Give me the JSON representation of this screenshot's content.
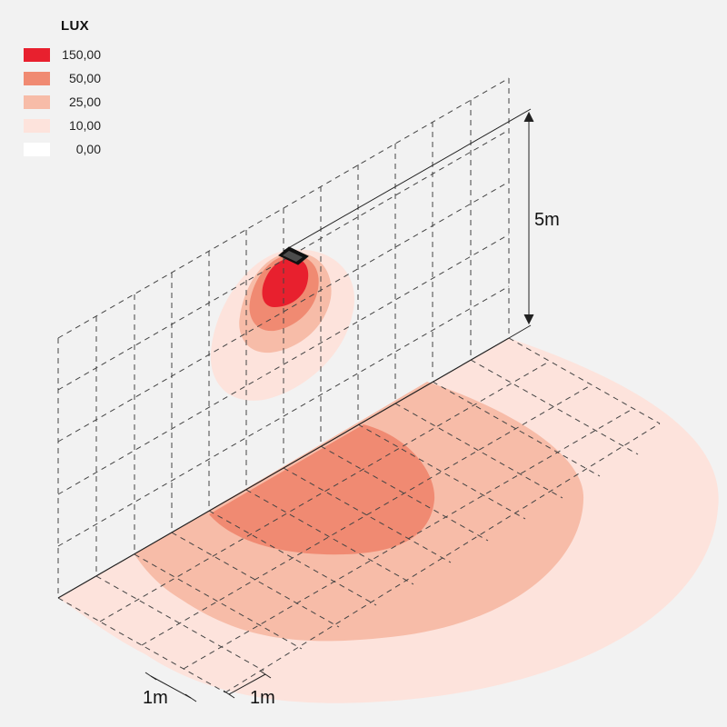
{
  "legend": {
    "title": "LUX",
    "items": [
      {
        "value": "150,00",
        "color": "#e8202e"
      },
      {
        "value": "50,00",
        "color": "#f08a72"
      },
      {
        "value": "25,00",
        "color": "#f7bca8"
      },
      {
        "value": "10,00",
        "color": "#fde3dc"
      },
      {
        "value": "0,00",
        "color": "#ffffff"
      }
    ]
  },
  "dimensions": {
    "height": "5m",
    "floor_depth": "1m",
    "floor_width": "1m"
  },
  "fixture": {
    "icon": "wall-luminaire-icon"
  },
  "colors": {
    "background": "#f2f2f2",
    "grid": "#444444"
  }
}
